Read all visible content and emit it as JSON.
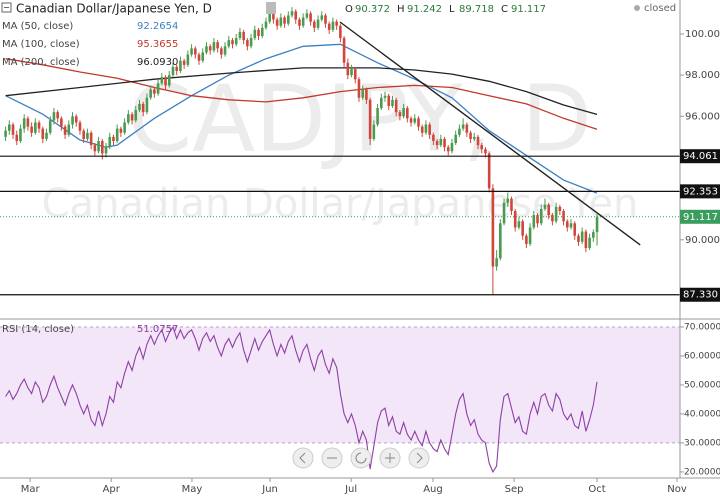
{
  "chart_data": {
    "type": "candlestick",
    "title": "Canadian Dollar/Japanese Yen, D",
    "status": "closed",
    "watermark": {
      "symbol": "CADJPY, D",
      "name": "Canadian Dollar/Japanese Yen"
    },
    "ohlc_legend": {
      "labels": [
        "O",
        "H",
        "L",
        "C"
      ],
      "values": [
        90.372,
        91.242,
        89.718,
        91.117
      ]
    },
    "up_color": "#4a9a4f",
    "down_color": "#d0463b",
    "candles": [
      [
        95.0,
        95.5,
        94.8,
        95.3
      ],
      [
        95.3,
        95.8,
        95.1,
        95.6
      ],
      [
        95.6,
        95.7,
        94.9,
        95.1
      ],
      [
        95.1,
        95.3,
        94.6,
        94.8
      ],
      [
        94.8,
        95.6,
        94.7,
        95.4
      ],
      [
        95.4,
        96.1,
        95.2,
        95.9
      ],
      [
        95.9,
        96.0,
        95.3,
        95.5
      ],
      [
        95.5,
        95.7,
        95.0,
        95.2
      ],
      [
        95.2,
        95.9,
        95.1,
        95.7
      ],
      [
        95.7,
        95.8,
        95.2,
        95.4
      ],
      [
        95.4,
        95.5,
        94.7,
        94.9
      ],
      [
        94.9,
        95.4,
        94.8,
        95.2
      ],
      [
        95.2,
        96.0,
        95.1,
        95.8
      ],
      [
        95.8,
        96.4,
        95.6,
        96.2
      ],
      [
        96.2,
        96.3,
        95.7,
        95.9
      ],
      [
        95.9,
        96.0,
        95.3,
        95.5
      ],
      [
        95.5,
        95.6,
        94.9,
        95.1
      ],
      [
        95.1,
        95.8,
        95.0,
        95.6
      ],
      [
        95.6,
        96.2,
        95.4,
        96.0
      ],
      [
        96.0,
        96.1,
        95.5,
        95.7
      ],
      [
        95.7,
        95.8,
        95.1,
        95.3
      ],
      [
        95.3,
        95.4,
        94.7,
        94.9
      ],
      [
        94.9,
        95.4,
        94.8,
        95.2
      ],
      [
        95.2,
        95.3,
        94.4,
        94.6
      ],
      [
        94.6,
        94.7,
        94.1,
        94.3
      ],
      [
        94.3,
        95.0,
        94.2,
        94.8
      ],
      [
        94.8,
        94.9,
        93.9,
        94.2
      ],
      [
        94.2,
        94.7,
        94.0,
        94.5
      ],
      [
        94.5,
        95.2,
        94.4,
        95.0
      ],
      [
        95.0,
        95.1,
        94.6,
        94.8
      ],
      [
        94.8,
        95.6,
        94.7,
        95.4
      ],
      [
        95.4,
        95.5,
        95.0,
        95.2
      ],
      [
        95.2,
        95.9,
        95.1,
        95.7
      ],
      [
        95.7,
        96.3,
        95.6,
        96.1
      ],
      [
        96.1,
        96.2,
        95.6,
        95.8
      ],
      [
        95.8,
        96.5,
        95.7,
        96.3
      ],
      [
        96.3,
        96.8,
        96.2,
        96.6
      ],
      [
        96.6,
        96.7,
        96.0,
        96.2
      ],
      [
        96.2,
        97.1,
        96.1,
        96.9
      ],
      [
        96.9,
        97.5,
        96.8,
        97.3
      ],
      [
        97.3,
        97.4,
        96.9,
        97.1
      ],
      [
        97.1,
        97.8,
        97.0,
        97.6
      ],
      [
        97.6,
        98.1,
        97.5,
        97.9
      ],
      [
        97.9,
        98.0,
        97.3,
        97.5
      ],
      [
        97.5,
        98.2,
        97.4,
        98.0
      ],
      [
        98.0,
        98.6,
        97.9,
        98.4
      ],
      [
        98.4,
        98.5,
        98.0,
        98.2
      ],
      [
        98.2,
        98.9,
        98.1,
        98.7
      ],
      [
        98.7,
        98.8,
        98.3,
        98.5
      ],
      [
        98.5,
        99.2,
        98.4,
        99.0
      ],
      [
        99.0,
        99.5,
        98.9,
        99.3
      ],
      [
        99.3,
        99.4,
        98.8,
        99.0
      ],
      [
        99.0,
        99.1,
        98.5,
        98.7
      ],
      [
        98.7,
        99.3,
        98.6,
        99.1
      ],
      [
        99.1,
        99.6,
        99.0,
        99.4
      ],
      [
        99.4,
        99.5,
        99.0,
        99.2
      ],
      [
        99.2,
        99.8,
        99.1,
        99.6
      ],
      [
        99.6,
        99.7,
        99.1,
        99.3
      ],
      [
        99.3,
        99.4,
        98.8,
        99.0
      ],
      [
        99.0,
        99.6,
        98.9,
        99.4
      ],
      [
        99.4,
        99.9,
        99.3,
        99.7
      ],
      [
        99.7,
        99.8,
        99.3,
        99.5
      ],
      [
        99.5,
        100.0,
        99.4,
        99.8
      ],
      [
        99.8,
        100.3,
        99.7,
        100.1
      ],
      [
        100.1,
        100.2,
        99.5,
        99.7
      ],
      [
        99.7,
        99.8,
        99.2,
        99.4
      ],
      [
        99.4,
        100.0,
        99.3,
        99.8
      ],
      [
        99.8,
        100.4,
        99.7,
        100.2
      ],
      [
        100.2,
        100.3,
        99.7,
        99.9
      ],
      [
        99.9,
        100.5,
        99.8,
        100.3
      ],
      [
        100.3,
        100.8,
        100.2,
        100.6
      ],
      [
        100.6,
        101.2,
        100.5,
        101.0
      ],
      [
        101.0,
        101.1,
        100.5,
        100.7
      ],
      [
        100.7,
        100.8,
        100.2,
        100.4
      ],
      [
        100.4,
        101.0,
        100.3,
        100.8
      ],
      [
        100.8,
        100.9,
        100.3,
        100.5
      ],
      [
        100.5,
        101.1,
        100.4,
        100.9
      ],
      [
        100.9,
        101.3,
        100.8,
        101.1
      ],
      [
        101.1,
        101.2,
        100.5,
        100.7
      ],
      [
        100.7,
        100.8,
        100.2,
        100.4
      ],
      [
        100.4,
        101.0,
        100.3,
        100.8
      ],
      [
        100.8,
        101.2,
        100.7,
        101.0
      ],
      [
        101.0,
        101.1,
        100.4,
        100.6
      ],
      [
        100.6,
        100.7,
        100.1,
        100.3
      ],
      [
        100.3,
        100.9,
        100.2,
        100.7
      ],
      [
        100.7,
        101.1,
        100.6,
        100.9
      ],
      [
        100.9,
        101.0,
        100.3,
        100.5
      ],
      [
        100.5,
        100.6,
        100.0,
        100.2
      ],
      [
        100.2,
        100.8,
        100.1,
        100.6
      ],
      [
        100.6,
        100.7,
        100.2,
        100.4
      ],
      [
        100.4,
        100.5,
        99.6,
        99.8
      ],
      [
        99.8,
        99.9,
        98.4,
        98.6
      ],
      [
        98.6,
        98.8,
        97.8,
        98.0
      ],
      [
        98.0,
        98.5,
        97.9,
        98.3
      ],
      [
        98.3,
        98.4,
        97.6,
        97.8
      ],
      [
        97.8,
        97.9,
        96.7,
        96.9
      ],
      [
        96.9,
        97.5,
        96.8,
        97.3
      ],
      [
        97.3,
        97.4,
        96.6,
        96.8
      ],
      [
        96.8,
        96.9,
        94.6,
        94.9
      ],
      [
        94.9,
        95.8,
        94.8,
        95.6
      ],
      [
        95.6,
        96.6,
        95.5,
        96.4
      ],
      [
        96.4,
        97.1,
        96.3,
        96.9
      ],
      [
        96.9,
        97.2,
        96.7,
        97.0
      ],
      [
        97.0,
        97.1,
        96.3,
        96.5
      ],
      [
        96.5,
        97.0,
        96.4,
        96.8
      ],
      [
        96.8,
        96.9,
        96.0,
        96.2
      ],
      [
        96.2,
        96.3,
        95.8,
        96.0
      ],
      [
        96.0,
        96.6,
        95.9,
        96.4
      ],
      [
        96.4,
        96.5,
        95.7,
        95.9
      ],
      [
        95.9,
        96.0,
        95.5,
        95.7
      ],
      [
        95.7,
        96.1,
        95.6,
        95.9
      ],
      [
        95.9,
        96.0,
        95.3,
        95.5
      ],
      [
        95.5,
        95.6,
        95.0,
        95.2
      ],
      [
        95.2,
        95.8,
        95.1,
        95.6
      ],
      [
        95.6,
        95.7,
        94.9,
        95.1
      ],
      [
        95.1,
        95.2,
        94.6,
        94.8
      ],
      [
        94.8,
        94.9,
        94.4,
        94.6
      ],
      [
        94.6,
        95.1,
        94.5,
        94.9
      ],
      [
        94.9,
        95.0,
        94.3,
        94.5
      ],
      [
        94.5,
        94.6,
        94.1,
        94.3
      ],
      [
        94.3,
        94.9,
        94.2,
        94.7
      ],
      [
        94.7,
        95.3,
        94.6,
        95.1
      ],
      [
        95.1,
        95.6,
        95.0,
        95.4
      ],
      [
        95.4,
        95.9,
        95.3,
        95.6
      ],
      [
        95.6,
        95.7,
        95.0,
        95.2
      ],
      [
        95.2,
        95.3,
        94.7,
        94.9
      ],
      [
        94.9,
        95.2,
        94.8,
        95.0
      ],
      [
        95.0,
        95.1,
        94.4,
        94.6
      ],
      [
        94.6,
        94.7,
        94.2,
        94.4
      ],
      [
        94.4,
        94.5,
        94.0,
        94.2
      ],
      [
        94.2,
        94.3,
        92.3,
        92.5
      ],
      [
        92.5,
        92.7,
        87.33,
        88.7
      ],
      [
        88.7,
        89.5,
        88.5,
        89.1
      ],
      [
        89.1,
        91.0,
        89.0,
        90.8
      ],
      [
        90.8,
        92.0,
        90.7,
        91.8
      ],
      [
        91.8,
        92.3,
        91.6,
        92.0
      ],
      [
        92.0,
        92.1,
        91.2,
        91.4
      ],
      [
        91.4,
        91.5,
        90.4,
        90.6
      ],
      [
        90.6,
        91.1,
        90.5,
        90.9
      ],
      [
        90.9,
        91.0,
        90.0,
        90.2
      ],
      [
        90.2,
        90.3,
        89.6,
        89.8
      ],
      [
        89.8,
        90.8,
        89.7,
        90.6
      ],
      [
        90.6,
        91.4,
        90.5,
        91.2
      ],
      [
        91.2,
        91.3,
        90.6,
        90.8
      ],
      [
        90.8,
        91.7,
        90.7,
        91.5
      ],
      [
        91.5,
        92.0,
        91.4,
        91.7
      ],
      [
        91.7,
        91.8,
        91.0,
        91.2
      ],
      [
        91.2,
        91.3,
        90.7,
        90.9
      ],
      [
        90.9,
        91.8,
        90.8,
        91.6
      ],
      [
        91.6,
        91.7,
        91.2,
        91.4
      ],
      [
        91.4,
        91.5,
        90.7,
        90.9
      ],
      [
        90.9,
        91.0,
        90.4,
        90.6
      ],
      [
        90.6,
        91.0,
        90.5,
        90.8
      ],
      [
        90.8,
        90.9,
        90.0,
        90.2
      ],
      [
        90.2,
        90.3,
        89.7,
        89.9
      ],
      [
        89.9,
        90.6,
        89.8,
        90.4
      ],
      [
        90.4,
        90.5,
        89.4,
        89.6
      ],
      [
        89.6,
        90.3,
        89.5,
        90.1
      ],
      [
        90.1,
        90.5,
        89.9,
        90.372
      ],
      [
        90.372,
        91.242,
        89.718,
        91.117
      ]
    ],
    "xlim": [
      -1.5,
      181.3
    ],
    "xticks": [
      {
        "value": 6.6,
        "label": "Mar"
      },
      {
        "value": 28.4,
        "label": "Apr"
      },
      {
        "value": 50.1,
        "label": "May"
      },
      {
        "value": 71.1,
        "label": "Jun"
      },
      {
        "value": 92.9,
        "label": "Jul"
      },
      {
        "value": 114.9,
        "label": "Aug"
      },
      {
        "value": 136.7,
        "label": "Sep"
      },
      {
        "value": 159,
        "label": "Oct"
      },
      {
        "value": 180.5,
        "label": "Nov"
      }
    ],
    "ylim": [
      86.2,
      101.65
    ],
    "yticks": [
      {
        "value": 90,
        "label": "90.000"
      },
      {
        "value": 96,
        "label": "96.000"
      },
      {
        "value": 98,
        "label": "98.000"
      },
      {
        "value": 100,
        "label": "100.000"
      }
    ],
    "moving_averages": [
      {
        "name": "MA (50, close)",
        "color": "#3d7fc2",
        "last": 92.2654,
        "x": [
          0,
          10,
          20,
          27,
          30,
          40,
          50,
          60,
          70,
          80,
          90,
          100,
          110,
          120,
          130,
          140,
          150,
          159
        ],
        "values": [
          97.0,
          96.1,
          94.85,
          94.5,
          94.6,
          95.9,
          97.0,
          98.0,
          98.8,
          99.4,
          99.5,
          98.6,
          97.8,
          96.9,
          95.3,
          94.1,
          92.9,
          92.27
        ]
      },
      {
        "name": "MA (100, close)",
        "color": "#c0392b",
        "last": 95.3655,
        "x": [
          0,
          10,
          20,
          30,
          40,
          50,
          60,
          70,
          80,
          90,
          100,
          110,
          120,
          130,
          140,
          150,
          159
        ],
        "values": [
          98.8,
          98.5,
          98.15,
          97.85,
          97.4,
          97.0,
          96.8,
          96.7,
          96.9,
          97.2,
          97.4,
          97.5,
          97.4,
          97.0,
          96.6,
          95.9,
          95.37
        ]
      },
      {
        "name": "MA (200, close)",
        "color": "#222222",
        "last": {
          "value": 96.093,
          "label": "96.0930"
        },
        "x": [
          0,
          20,
          40,
          60,
          80,
          100,
          110,
          120,
          130,
          140,
          150,
          159
        ],
        "values": [
          97.0,
          97.4,
          97.8,
          98.1,
          98.35,
          98.35,
          98.25,
          98.05,
          97.7,
          97.2,
          96.55,
          96.09
        ]
      }
    ],
    "levels": [
      94.061,
      92.353,
      {
        "value": 87.33,
        "label": "87.330"
      }
    ],
    "last_price": {
      "value": 91.117,
      "color": "#3a9d5d"
    },
    "trendline": {
      "x": [
        89.9,
        170.6
      ],
      "values": [
        100.58,
        89.75
      ]
    },
    "rsi": {
      "name": "RSI (14, close)",
      "color": "#8e3fa6",
      "last": 51.0757,
      "ylim": [
        17.9,
        72.4
      ],
      "band": [
        30,
        70
      ],
      "yticks": [
        {
          "value": 70,
          "label": "70.0000"
        },
        {
          "value": 60,
          "label": "60.0000"
        },
        {
          "value": 50,
          "label": "50.0000"
        },
        {
          "value": 40,
          "label": "40.0000"
        },
        {
          "value": 30,
          "label": "30.0000"
        },
        {
          "value": 20,
          "label": "20.0000"
        }
      ],
      "values": [
        46,
        48,
        45,
        47,
        50,
        52,
        49,
        47,
        51,
        49,
        44,
        46,
        50,
        53,
        49,
        46,
        43,
        47,
        50,
        47,
        43,
        40,
        43,
        38,
        36,
        41,
        36,
        40,
        46,
        44,
        51,
        49,
        54,
        58,
        55,
        60,
        63,
        59,
        64,
        67,
        64,
        67,
        69,
        65,
        68,
        70,
        66,
        69,
        66,
        68,
        69,
        66,
        62,
        66,
        68,
        65,
        67,
        63,
        60,
        64,
        66,
        63,
        66,
        68,
        62,
        58,
        62,
        66,
        62,
        65,
        67,
        69,
        64,
        60,
        64,
        61,
        65,
        67,
        62,
        58,
        62,
        64,
        59,
        55,
        60,
        62,
        57,
        54,
        59,
        56,
        47,
        40,
        37,
        40,
        36,
        30,
        34,
        31,
        21,
        29,
        37,
        41,
        42,
        36,
        39,
        34,
        33,
        37,
        33,
        31,
        34,
        31,
        29,
        34,
        30,
        28,
        27,
        31,
        28,
        26,
        33,
        40,
        45,
        47,
        40,
        36,
        38,
        33,
        31,
        30,
        23,
        20,
        22,
        38,
        46,
        47,
        42,
        37,
        39,
        34,
        33,
        40,
        44,
        40,
        46,
        47,
        43,
        41,
        47,
        45,
        40,
        38,
        40,
        36,
        35,
        41,
        34,
        38,
        43,
        51.0757
      ]
    }
  }
}
